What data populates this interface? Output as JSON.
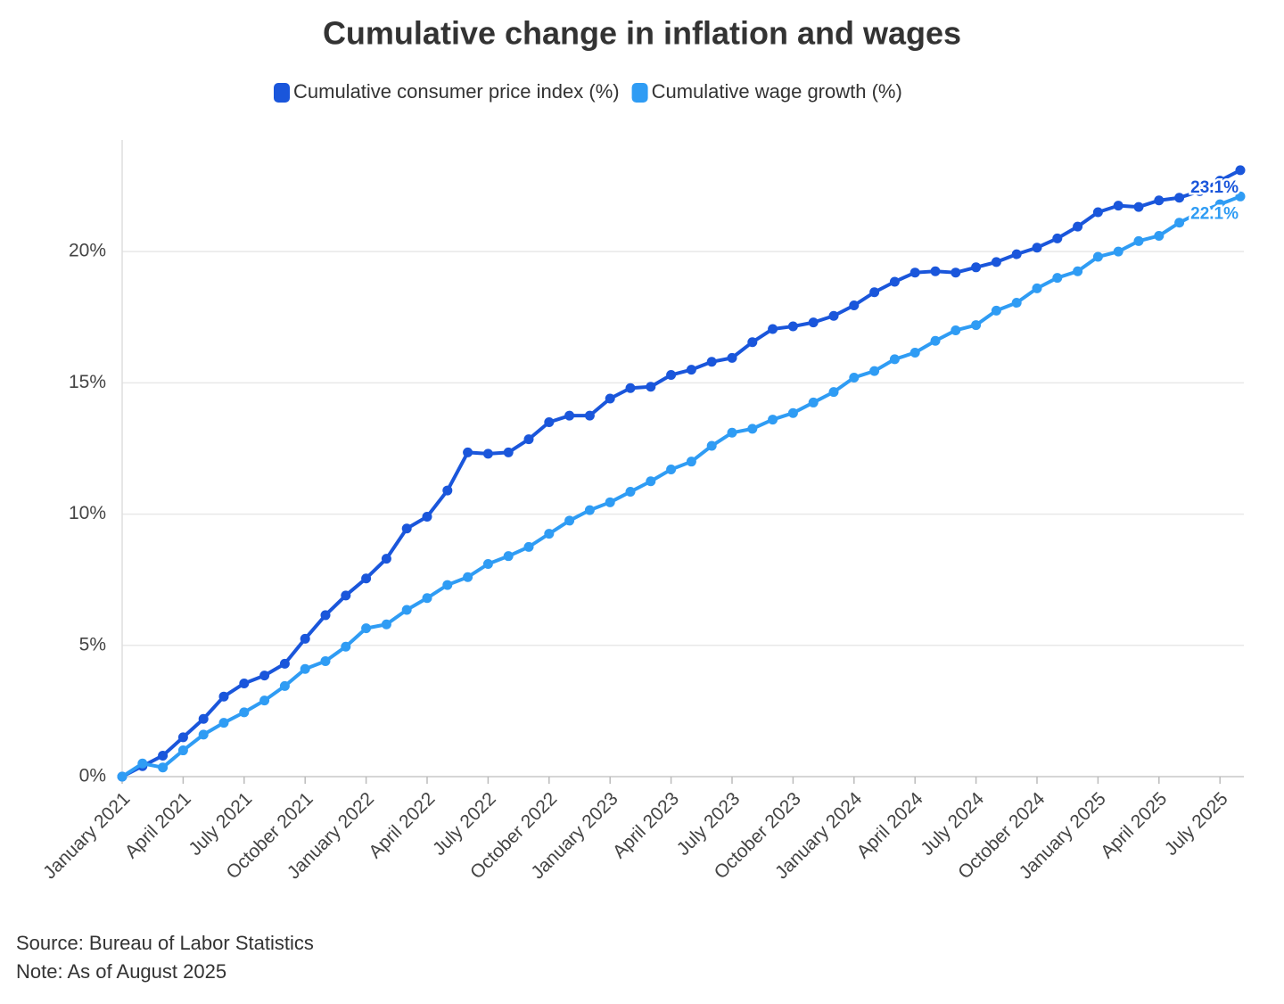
{
  "chart_data": {
    "type": "line",
    "title": "Cumulative change in inflation and wages",
    "source": "Source: Bureau of Labor Statistics",
    "note": "Note: As of August 2025",
    "categories": [
      "January 2021",
      null,
      null,
      "April 2021",
      null,
      null,
      "July 2021",
      null,
      null,
      "October 2021",
      null,
      null,
      "January 2022",
      null,
      null,
      "April 2022",
      null,
      null,
      "July 2022",
      null,
      null,
      "October 2022",
      null,
      null,
      "January 2023",
      null,
      null,
      "April 2023",
      null,
      null,
      "July 2023",
      null,
      null,
      "October 2023",
      null,
      null,
      "January 2024",
      null,
      null,
      "April 2024",
      null,
      null,
      "July 2024",
      null,
      null,
      "October 2024",
      null,
      null,
      "January 2025",
      null,
      null,
      "April 2025",
      null,
      null,
      "July 2025",
      null
    ],
    "series": [
      {
        "name": "Cumulative consumer price index (%)",
        "color": "#1a56db",
        "values": [
          0,
          0.4,
          0.8,
          1.5,
          2.2,
          3.05,
          3.55,
          3.85,
          4.3,
          5.25,
          6.15,
          6.9,
          7.55,
          8.3,
          9.45,
          9.9,
          10.9,
          12.35,
          12.3,
          12.35,
          12.85,
          13.5,
          13.75,
          13.75,
          14.4,
          14.8,
          14.85,
          15.3,
          15.5,
          15.8,
          15.95,
          16.55,
          17.05,
          17.15,
          17.3,
          17.55,
          17.95,
          18.45,
          18.85,
          19.2,
          19.25,
          19.2,
          19.4,
          19.6,
          19.9,
          20.15,
          20.5,
          20.95,
          21.5,
          21.75,
          21.7,
          21.95,
          22.05,
          22.3,
          22.7,
          23.1
        ],
        "value_labels": [
          null,
          null,
          null,
          null,
          null,
          null,
          null,
          null,
          null,
          null,
          null,
          null,
          null,
          null,
          null,
          null,
          null,
          null,
          null,
          null,
          null,
          null,
          null,
          null,
          null,
          null,
          null,
          null,
          null,
          null,
          null,
          null,
          null,
          null,
          null,
          null,
          null,
          null,
          null,
          null,
          null,
          null,
          null,
          null,
          null,
          null,
          null,
          null,
          null,
          null,
          null,
          null,
          null,
          null,
          null,
          "23.1%"
        ]
      },
      {
        "name": "Cumulative wage growth (%)",
        "color": "#2f9cf4",
        "values": [
          0,
          0.5,
          0.35,
          1.0,
          1.6,
          2.05,
          2.45,
          2.9,
          3.45,
          4.1,
          4.4,
          4.95,
          5.65,
          5.8,
          6.35,
          6.8,
          7.3,
          7.6,
          8.1,
          8.4,
          8.75,
          9.25,
          9.75,
          10.15,
          10.45,
          10.85,
          11.25,
          11.7,
          12.0,
          12.6,
          13.1,
          13.25,
          13.6,
          13.85,
          14.25,
          14.65,
          15.2,
          15.45,
          15.9,
          16.15,
          16.6,
          17.0,
          17.2,
          17.75,
          18.05,
          18.6,
          19.0,
          19.25,
          19.8,
          20.0,
          20.4,
          20.6,
          21.1,
          21.5,
          21.8,
          22.1
        ],
        "value_labels": [
          null,
          null,
          null,
          null,
          null,
          null,
          null,
          null,
          null,
          null,
          null,
          null,
          null,
          null,
          null,
          null,
          null,
          null,
          null,
          null,
          null,
          null,
          null,
          null,
          null,
          null,
          null,
          null,
          null,
          null,
          null,
          null,
          null,
          null,
          null,
          null,
          null,
          null,
          null,
          null,
          null,
          null,
          null,
          null,
          null,
          null,
          null,
          null,
          null,
          null,
          null,
          null,
          null,
          null,
          null,
          "22.1%"
        ]
      }
    ],
    "ylim": [
      0,
      24.25
    ],
    "yticks": [
      {
        "value": 0,
        "label": "0%"
      },
      {
        "value": 5,
        "label": "5%"
      },
      {
        "value": 10,
        "label": "10%"
      },
      {
        "value": 15,
        "label": "15%"
      },
      {
        "value": 20,
        "label": "20%"
      }
    ],
    "grid": true,
    "legend": "top"
  }
}
